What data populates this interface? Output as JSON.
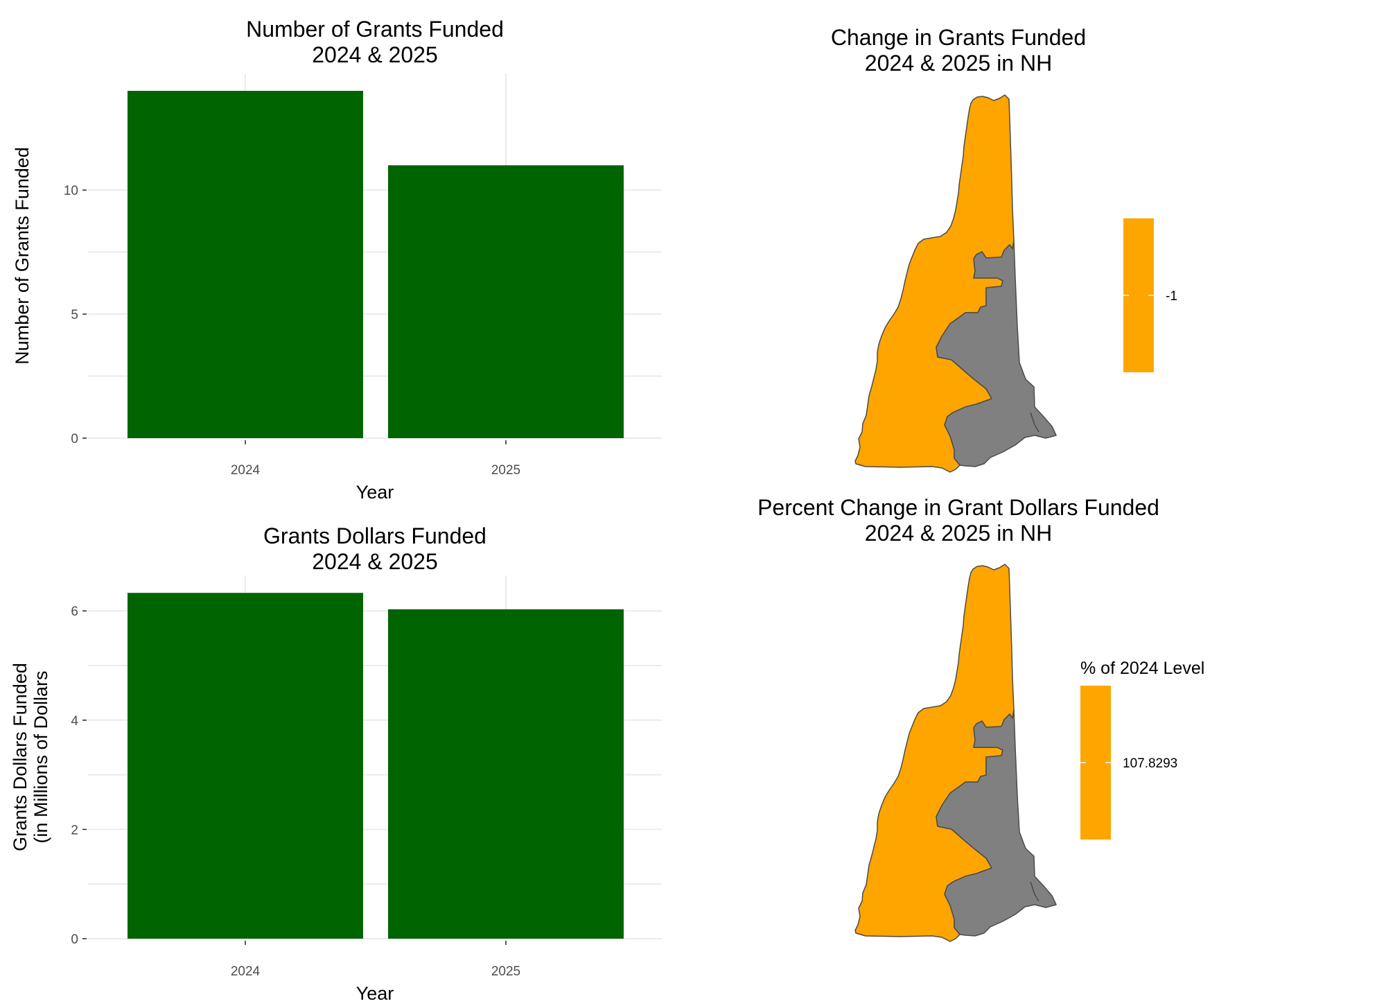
{
  "colors": {
    "bar": "#006400",
    "map_highlight": "#FFA500",
    "map_other": "#808080",
    "legend_bar": "#FFA500"
  },
  "chart_data": [
    {
      "type": "bar",
      "title": "Number of Grants Funded\n2024 & 2025",
      "xlabel": "Year",
      "ylabel": "Number of Grants Funded",
      "categories": [
        "2024",
        "2025"
      ],
      "values": [
        14,
        11
      ],
      "ylim": [
        0,
        14.7
      ],
      "yticks": [
        0,
        5,
        10
      ],
      "grid": true
    },
    {
      "type": "bar",
      "title": "Grants Dollars Funded\n2024 & 2025",
      "xlabel": "Year",
      "ylabel": "Grants Dollars Funded\n(in Millions of Dollars",
      "categories": [
        "2024",
        "2025"
      ],
      "values": [
        6.33,
        6.03
      ],
      "ylim": [
        0,
        6.65
      ],
      "yticks": [
        0,
        2,
        4,
        6
      ],
      "grid": true
    },
    {
      "type": "map",
      "title": "Change in Grants Funded\n2024 & 2025 in NH",
      "region": "New Hampshire",
      "legend": {
        "title": "",
        "values": [
          "-1"
        ]
      }
    },
    {
      "type": "map",
      "title": "Percent Change in Grant Dollars Funded\n2024 & 2025 in NH",
      "region": "New Hampshire",
      "legend": {
        "title": "% of 2024 Level",
        "values": [
          "107.8293"
        ]
      }
    }
  ]
}
